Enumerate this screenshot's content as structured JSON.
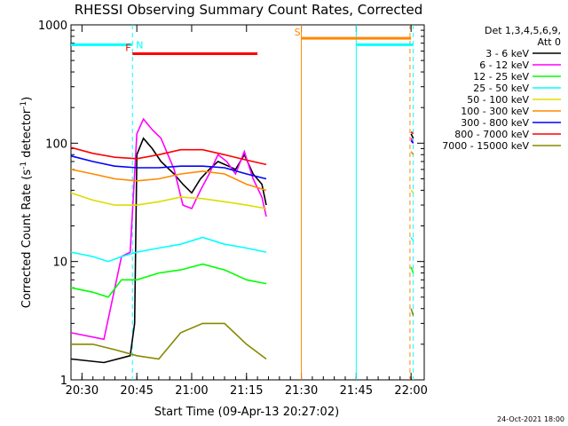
{
  "chart_data": {
    "type": "line",
    "title": "RHESSI Observing Summary Count Rates, Corrected",
    "xlabel": "Start Time (09-Apr-13 20:27:02)",
    "ylabel_main": "Corrected Count Rate (s",
    "ylabel_sup1": "-1",
    "ylabel_mid": " detector",
    "ylabel_sup2": "-1",
    "ylabel_end": ")",
    "yscale": "log",
    "ylim": [
      1,
      1000
    ],
    "xlim_minutes": [
      20.45,
      22.06
    ],
    "x_ticks": [
      {
        "label": "20:30",
        "t": 20.5
      },
      {
        "label": "20:45",
        "t": 20.75
      },
      {
        "label": "21:00",
        "t": 21.0
      },
      {
        "label": "21:15",
        "t": 21.25
      },
      {
        "label": "21:30",
        "t": 21.5
      },
      {
        "label": "21:45",
        "t": 21.75
      },
      {
        "label": "22:00",
        "t": 22.0
      }
    ],
    "y_ticks": [
      {
        "label": "1",
        "v": 1
      },
      {
        "label": "10",
        "v": 10
      },
      {
        "label": "100",
        "v": 100
      },
      {
        "label": "1000",
        "v": 1000
      }
    ],
    "legend_header": [
      "Det 1,3,4,5,6,9,",
      "Att 0"
    ],
    "series": [
      {
        "name": "3 - 6 keV",
        "color": "#000000",
        "points": [
          [
            20.45,
            1.5
          ],
          [
            20.6,
            1.4
          ],
          [
            20.72,
            1.6
          ],
          [
            20.74,
            3
          ],
          [
            20.75,
            80
          ],
          [
            20.78,
            110
          ],
          [
            20.82,
            90
          ],
          [
            20.86,
            70
          ],
          [
            20.92,
            55
          ],
          [
            20.96,
            45
          ],
          [
            21.0,
            38
          ],
          [
            21.04,
            50
          ],
          [
            21.08,
            60
          ],
          [
            21.12,
            70
          ],
          [
            21.16,
            65
          ],
          [
            21.2,
            60
          ],
          [
            21.24,
            80
          ],
          [
            21.28,
            55
          ],
          [
            21.32,
            45
          ],
          [
            21.34,
            30
          ]
        ]
      },
      {
        "name": "6 - 12 keV",
        "color": "#ff00ff",
        "points": [
          [
            20.45,
            2.5
          ],
          [
            20.6,
            2.2
          ],
          [
            20.68,
            11
          ],
          [
            20.72,
            12
          ],
          [
            20.75,
            120
          ],
          [
            20.78,
            160
          ],
          [
            20.82,
            130
          ],
          [
            20.86,
            110
          ],
          [
            20.92,
            60
          ],
          [
            20.96,
            30
          ],
          [
            21.0,
            28
          ],
          [
            21.04,
            40
          ],
          [
            21.08,
            55
          ],
          [
            21.12,
            80
          ],
          [
            21.16,
            70
          ],
          [
            21.2,
            55
          ],
          [
            21.24,
            85
          ],
          [
            21.28,
            50
          ],
          [
            21.32,
            35
          ],
          [
            21.34,
            24
          ]
        ]
      },
      {
        "name": "12 - 25 keV",
        "color": "#00ff00",
        "points": [
          [
            20.45,
            6
          ],
          [
            20.55,
            5.5
          ],
          [
            20.62,
            5
          ],
          [
            20.68,
            7
          ],
          [
            20.75,
            7
          ],
          [
            20.85,
            8
          ],
          [
            20.95,
            8.5
          ],
          [
            21.05,
            9.5
          ],
          [
            21.15,
            8.5
          ],
          [
            21.25,
            7
          ],
          [
            21.34,
            6.5
          ]
        ]
      },
      {
        "name": "25 - 50 keV",
        "color": "#00ffff",
        "points": [
          [
            20.45,
            12
          ],
          [
            20.55,
            11
          ],
          [
            20.62,
            10
          ],
          [
            20.68,
            11
          ],
          [
            20.75,
            12
          ],
          [
            20.85,
            13
          ],
          [
            20.95,
            14
          ],
          [
            21.05,
            16
          ],
          [
            21.15,
            14
          ],
          [
            21.25,
            13
          ],
          [
            21.34,
            12
          ]
        ]
      },
      {
        "name": "50 - 100 keV",
        "color": "#dddd00",
        "points": [
          [
            20.45,
            38
          ],
          [
            20.55,
            33
          ],
          [
            20.65,
            30
          ],
          [
            20.75,
            30
          ],
          [
            20.85,
            32
          ],
          [
            20.95,
            35
          ],
          [
            21.05,
            34
          ],
          [
            21.15,
            32
          ],
          [
            21.25,
            30
          ],
          [
            21.34,
            28
          ]
        ]
      },
      {
        "name": "100 - 300 keV",
        "color": "#ff8800",
        "points": [
          [
            20.45,
            60
          ],
          [
            20.55,
            55
          ],
          [
            20.65,
            50
          ],
          [
            20.75,
            48
          ],
          [
            20.85,
            50
          ],
          [
            20.95,
            55
          ],
          [
            21.05,
            58
          ],
          [
            21.15,
            55
          ],
          [
            21.25,
            45
          ],
          [
            21.34,
            40
          ]
        ]
      },
      {
        "name": "300 - 800 keV",
        "color": "#0000ff",
        "points": [
          [
            20.45,
            78
          ],
          [
            20.55,
            70
          ],
          [
            20.65,
            64
          ],
          [
            20.75,
            62
          ],
          [
            20.85,
            62
          ],
          [
            20.95,
            64
          ],
          [
            21.05,
            64
          ],
          [
            21.15,
            62
          ],
          [
            21.25,
            55
          ],
          [
            21.34,
            50
          ]
        ]
      },
      {
        "name": "800 - 7000 keV",
        "color": "#ff0000",
        "points": [
          [
            20.45,
            92
          ],
          [
            20.55,
            82
          ],
          [
            20.65,
            76
          ],
          [
            20.75,
            74
          ],
          [
            20.85,
            80
          ],
          [
            20.95,
            88
          ],
          [
            21.05,
            88
          ],
          [
            21.15,
            80
          ],
          [
            21.25,
            72
          ],
          [
            21.34,
            66
          ]
        ]
      },
      {
        "name": "7000 - 15000 keV",
        "color": "#888800",
        "points": [
          [
            20.45,
            2
          ],
          [
            20.55,
            2
          ],
          [
            20.65,
            1.8
          ],
          [
            20.75,
            1.6
          ],
          [
            20.85,
            1.5
          ],
          [
            20.95,
            2.5
          ],
          [
            21.05,
            3
          ],
          [
            21.15,
            3
          ],
          [
            21.25,
            2
          ],
          [
            21.34,
            1.5
          ]
        ]
      }
    ],
    "post_gap_series": [
      {
        "name": "3 - 6 keV",
        "color": "#000000",
        "points": [
          [
            22.0,
            120
          ],
          [
            22.01,
            110
          ]
        ]
      },
      {
        "name": "6 - 12 keV",
        "color": "#ff00ff",
        "points": [
          [
            22.0,
            110
          ],
          [
            22.01,
            100
          ]
        ]
      },
      {
        "name": "12 - 25 keV",
        "color": "#00ff00",
        "points": [
          [
            22.0,
            9
          ],
          [
            22.01,
            8
          ]
        ]
      },
      {
        "name": "25 - 50 keV",
        "color": "#00ffff",
        "points": [
          [
            22.0,
            16
          ],
          [
            22.01,
            15
          ]
        ]
      },
      {
        "name": "50 - 100 keV",
        "color": "#dddd00",
        "points": [
          [
            22.0,
            40
          ],
          [
            22.01,
            38
          ]
        ]
      },
      {
        "name": "100 - 300 keV",
        "color": "#ff8800",
        "points": [
          [
            22.0,
            85
          ],
          [
            22.01,
            80
          ]
        ]
      },
      {
        "name": "300 - 800 keV",
        "color": "#0000ff",
        "points": [
          [
            22.0,
            105
          ],
          [
            22.01,
            100
          ]
        ]
      },
      {
        "name": "800 - 7000 keV",
        "color": "#ff0000",
        "points": [
          [
            22.0,
            125
          ],
          [
            22.01,
            120
          ]
        ]
      },
      {
        "name": "7000 - 15000 keV",
        "color": "#888800",
        "points": [
          [
            22.0,
            4
          ],
          [
            22.01,
            3.5
          ]
        ]
      }
    ],
    "flags": [
      {
        "label": "N",
        "color": "#00ffff",
        "t_start": 20.45,
        "t_end": 20.73,
        "level": 680
      },
      {
        "label": "F",
        "color": "#ff0000",
        "t_start": 20.73,
        "t_end": 21.3,
        "level": 570
      },
      {
        "label": "S",
        "color": "#ff8800",
        "t_start": 21.5,
        "t_end": 22.0,
        "level": 770
      },
      {
        "label": "",
        "color": "#00ffff",
        "t_start": 21.75,
        "t_end": 22.01,
        "level": 680
      }
    ],
    "vertical_markers": [
      {
        "t": 20.73,
        "color": "#00ffff",
        "style": "dashed"
      },
      {
        "t": 21.5,
        "color": "#ff8800",
        "style": "solid"
      },
      {
        "t": 21.75,
        "color": "#00ffff",
        "style": "solid"
      },
      {
        "t": 21.995,
        "color": "#ff8800",
        "style": "dashed"
      },
      {
        "t": 22.01,
        "color": "#00ffff",
        "style": "dashed"
      }
    ],
    "footer_date": "24-Oct-2021 18:00"
  }
}
